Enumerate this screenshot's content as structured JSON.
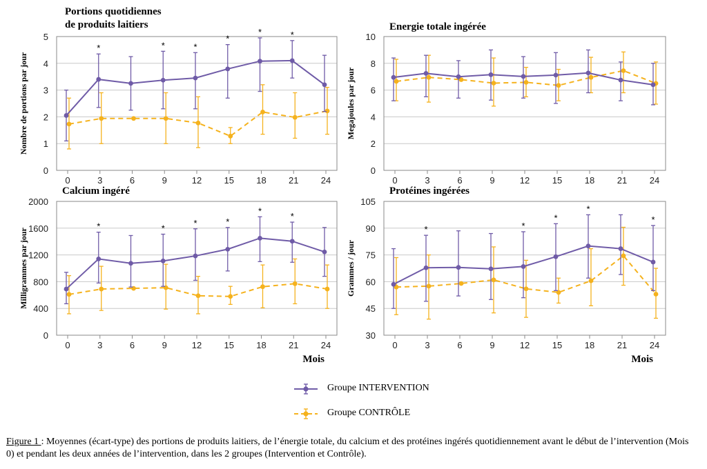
{
  "x_axis_label": "Mois",
  "legend": [
    {
      "label": "Groupe INTERVENTION",
      "color": "#6f5ba7",
      "dashed": false
    },
    {
      "label": "Groupe CONTRÔLE",
      "color": "#f5b21d",
      "dashed": true
    }
  ],
  "caption": {
    "label": "Figure 1 ",
    "text": ": Moyennes (écart-type) des portions de produits laitiers,  de l’énergie totale, du calcium et des protéines ingérés quotidiennement avant le début de l’intervention (Mois 0) et pendant les deux années de l’intervention, dans les 2 groupes (Intervention et Contrôle)."
  },
  "chart_data": [
    {
      "type": "line",
      "title": "Portions quotidiennes de produits laitiers",
      "title_lines": [
        "Portions quotidiennes",
        "de produits laitiers"
      ],
      "ylabel": "Nombre de portions par jour",
      "x": [
        0,
        3,
        6,
        9,
        12,
        15,
        18,
        21,
        24
      ],
      "ylim": [
        0,
        5
      ],
      "yticks": [
        0,
        1,
        2,
        3,
        4,
        5
      ],
      "series": [
        {
          "name": "Groupe INTERVENTION",
          "values": [
            2.05,
            3.4,
            3.25,
            3.37,
            3.45,
            3.79,
            4.08,
            4.1,
            3.2
          ],
          "lower": [
            1.1,
            2.35,
            2.25,
            2.3,
            2.3,
            2.7,
            2.95,
            3.45,
            2.2
          ],
          "upper": [
            3.0,
            4.35,
            4.25,
            4.45,
            4.4,
            4.7,
            4.95,
            4.85,
            4.3
          ]
        },
        {
          "name": "Groupe CONTRÔLE",
          "values": [
            1.73,
            1.94,
            1.94,
            1.94,
            1.77,
            1.28,
            2.18,
            1.98,
            2.22
          ],
          "lower": [
            0.8,
            1.0,
            null,
            1.0,
            0.85,
            1.0,
            1.35,
            1.2,
            1.35
          ],
          "upper": [
            2.7,
            2.9,
            null,
            2.9,
            2.75,
            1.6,
            3.2,
            2.9,
            3.1
          ]
        }
      ],
      "significant_at": [
        3,
        9,
        12,
        15,
        18,
        21
      ]
    },
    {
      "type": "line",
      "title": "Energie totale ingérée",
      "title_lines": [
        "Energie totale ingérée"
      ],
      "ylabel": "Megajoules par jour",
      "x": [
        0,
        3,
        6,
        9,
        12,
        15,
        18,
        21,
        24
      ],
      "ylim": [
        0,
        10
      ],
      "yticks": [
        0,
        2,
        4,
        6,
        8,
        10
      ],
      "series": [
        {
          "name": "Groupe INTERVENTION",
          "values": [
            6.95,
            7.25,
            7.0,
            7.15,
            7.02,
            7.12,
            7.28,
            6.75,
            6.4
          ],
          "lower": [
            5.2,
            5.5,
            5.4,
            5.25,
            5.4,
            5.0,
            5.8,
            5.2,
            4.9
          ],
          "upper": [
            8.4,
            8.6,
            8.2,
            9.0,
            8.5,
            8.8,
            9.0,
            8.1,
            8.0
          ]
        },
        {
          "name": "Groupe CONTRÔLE",
          "values": [
            6.65,
            6.95,
            6.78,
            6.52,
            6.58,
            6.35,
            6.95,
            7.45,
            6.5
          ],
          "lower": [
            5.2,
            5.1,
            null,
            4.8,
            5.5,
            5.2,
            5.8,
            5.8,
            4.95
          ],
          "upper": [
            8.3,
            8.6,
            null,
            8.4,
            7.7,
            7.55,
            8.45,
            8.85,
            8.1
          ]
        }
      ],
      "significant_at": []
    },
    {
      "type": "line",
      "title": "Calcium ingéré",
      "title_lines": [
        "Calcium ingéré"
      ],
      "ylabel": "Milligrammes  par jour",
      "x": [
        0,
        3,
        6,
        9,
        12,
        15,
        18,
        21,
        24
      ],
      "ylim": [
        0,
        2000
      ],
      "yticks": [
        0,
        400,
        800,
        1200,
        1600,
        2000
      ],
      "series": [
        {
          "name": "Groupe INTERVENTION",
          "values": [
            690,
            1140,
            1075,
            1110,
            1185,
            1285,
            1450,
            1405,
            1245
          ],
          "lower": [
            470,
            780,
            720,
            730,
            820,
            960,
            1100,
            1090,
            880
          ],
          "upper": [
            940,
            1540,
            1490,
            1510,
            1590,
            1610,
            1770,
            1690,
            1610
          ]
        },
        {
          "name": "Groupe CONTRÔLE",
          "values": [
            610,
            690,
            700,
            710,
            590,
            580,
            725,
            770,
            690
          ],
          "lower": [
            320,
            370,
            null,
            390,
            320,
            460,
            410,
            470,
            400
          ],
          "upper": [
            890,
            1030,
            null,
            1060,
            880,
            730,
            1050,
            1140,
            1050
          ]
        }
      ],
      "significant_at": [
        3,
        9,
        12,
        15,
        18,
        21
      ]
    },
    {
      "type": "line",
      "title": "Protéines ingérées",
      "title_lines": [
        "Protéines ingérées"
      ],
      "ylabel": "Grammes / jour",
      "x": [
        0,
        3,
        6,
        9,
        12,
        15,
        18,
        21,
        24
      ],
      "ylim": [
        30,
        105
      ],
      "yticks": [
        30,
        45,
        60,
        75,
        90,
        105
      ],
      "series": [
        {
          "name": "Groupe INTERVENTION",
          "values": [
            58.5,
            67.8,
            68.0,
            67.2,
            68.5,
            74.0,
            80.0,
            78.5,
            71.0
          ],
          "lower": [
            45,
            49,
            52,
            50,
            51,
            55,
            62,
            64,
            55
          ],
          "upper": [
            78.5,
            86,
            88.5,
            87,
            88,
            92.5,
            97.5,
            97.5,
            91.5
          ]
        },
        {
          "name": "Groupe CONTRÔLE",
          "values": [
            57.0,
            57.5,
            59.0,
            61.0,
            56.0,
            54.0,
            60.5,
            74.5,
            53.0
          ],
          "lower": [
            41.5,
            39,
            null,
            42.5,
            40,
            48,
            46.5,
            58,
            39.5
          ],
          "upper": [
            73.5,
            75,
            null,
            79.5,
            72,
            62,
            78.5,
            90.5,
            67.5
          ]
        }
      ],
      "significant_at": [
        3,
        12,
        15,
        18,
        24
      ]
    }
  ]
}
